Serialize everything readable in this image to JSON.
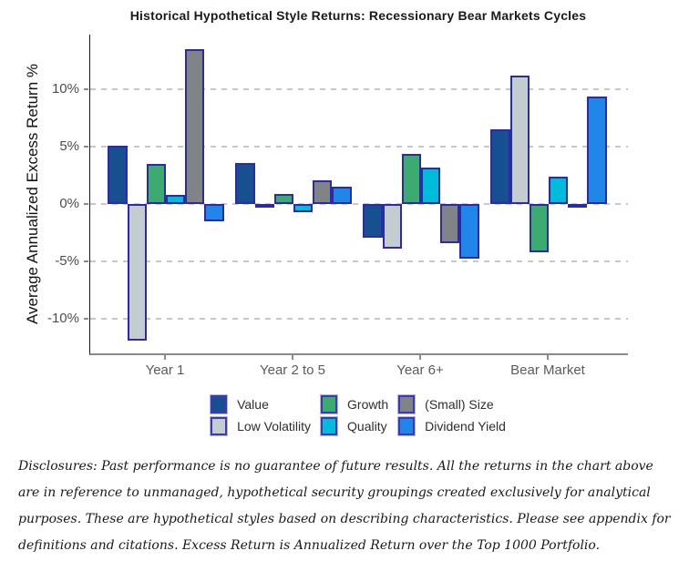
{
  "chart_data": {
    "type": "bar",
    "title": "Historical Hypothetical Style Returns: Recessionary Bear Markets Cycles",
    "ylabel": "Average Annualized Excess Return %",
    "xlabel": "",
    "categories": [
      "Year 1",
      "Year 2 to 5",
      "Year 6+",
      "Bear Market"
    ],
    "series": [
      {
        "name": "Value",
        "color": "#17508E",
        "values": [
          5.1,
          3.6,
          -2.9,
          6.5
        ]
      },
      {
        "name": "Low Volatility",
        "color": "#C3CDD0",
        "values": [
          -11.9,
          -0.2,
          -3.9,
          11.2
        ]
      },
      {
        "name": "Growth",
        "color": "#3BAB6F",
        "values": [
          3.5,
          0.9,
          4.4,
          -4.2
        ]
      },
      {
        "name": "Quality",
        "color": "#00BCD9",
        "values": [
          0.8,
          -0.7,
          3.2,
          2.4
        ]
      },
      {
        "name": "(Small) Size",
        "color": "#818486",
        "values": [
          13.5,
          2.1,
          -3.4,
          -0.2
        ]
      },
      {
        "name": "Dividend Yield",
        "color": "#2086E8",
        "values": [
          -1.5,
          1.5,
          -4.8,
          9.4
        ]
      }
    ],
    "yticks": [
      {
        "label": "10%",
        "value": 10
      },
      {
        "label": "5%",
        "value": 5
      },
      {
        "label": "0%",
        "value": 0
      },
      {
        "label": "-5%",
        "value": -5
      },
      {
        "label": "-10%",
        "value": -10
      }
    ],
    "ylim": [
      -13,
      14.8
    ],
    "grid": "horizontal-dashed",
    "legend_position": "bottom",
    "legend_columns": 3,
    "colors": {
      "bar_border": "#2B2BA8",
      "legend_border": "#3A3AB2",
      "grid": "#C7C7C7",
      "x_axis": "#8A8A8A",
      "y_axis": "#1A1A1A",
      "y_tick_label": "#4D4D4D",
      "x_tick_label": "#5B5B5B",
      "title": "#1A1A1A"
    }
  },
  "disclosures": "Disclosures: Past performance is no guarantee of future results. All the returns in the chart above are in reference to unmanaged, hypothetical security groupings created exclusively for analytical purposes. These are hypothetical styles based on describing characteristics. Please see appendix for definitions and citations. Excess Return is Annualized Return over the Top 1000 Portfolio."
}
